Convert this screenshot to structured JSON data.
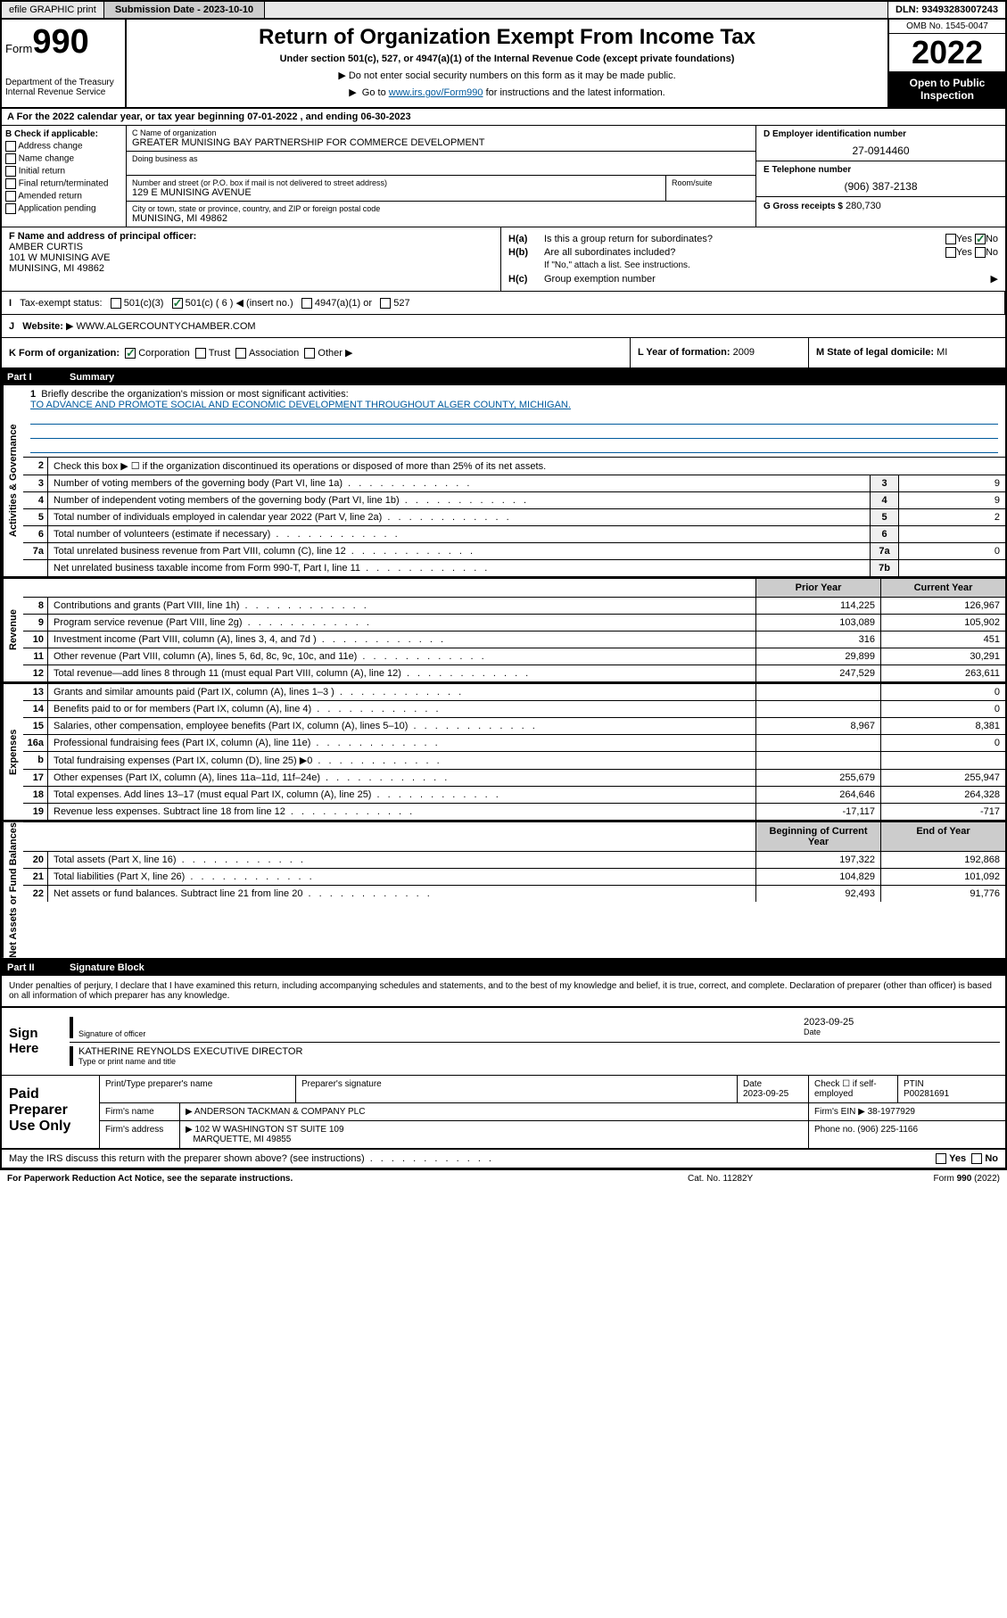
{
  "topbar": {
    "efile": "efile GRAPHIC print",
    "submission_label": "Submission Date - 2023-10-10",
    "dln": "DLN: 93493283007243"
  },
  "header": {
    "form_word": "Form",
    "form_num": "990",
    "dept": "Department of the Treasury\nInternal Revenue Service",
    "title": "Return of Organization Exempt From Income Tax",
    "subtitle": "Under section 501(c), 527, or 4947(a)(1) of the Internal Revenue Code (except private foundations)",
    "instr1": "Do not enter social security numbers on this form as it may be made public.",
    "instr2_a": "Go to ",
    "instr2_link": "www.irs.gov/Form990",
    "instr2_b": " for instructions and the latest information.",
    "omb": "OMB No. 1545-0047",
    "year": "2022",
    "open_pub": "Open to Public Inspection"
  },
  "row_a": "A For the 2022 calendar year, or tax year beginning 07-01-2022   , and ending 06-30-2023",
  "sec_b": {
    "label": "B Check if applicable:",
    "opts": [
      "Address change",
      "Name change",
      "Initial return",
      "Final return/terminated",
      "Amended return",
      "Application pending"
    ]
  },
  "sec_c": {
    "name_lbl": "C Name of organization",
    "name": "GREATER MUNISING BAY PARTNERSHIP FOR COMMERCE DEVELOPMENT",
    "dba_lbl": "Doing business as",
    "addr_lbl": "Number and street (or P.O. box if mail is not delivered to street address)",
    "addr": "129 E MUNISING AVENUE",
    "suite_lbl": "Room/suite",
    "city_lbl": "City or town, state or province, country, and ZIP or foreign postal code",
    "city": "MUNISING, MI  49862"
  },
  "sec_d": {
    "ein_lbl": "D Employer identification number",
    "ein": "27-0914460",
    "tel_lbl": "E Telephone number",
    "tel": "(906) 387-2138",
    "gross_lbl": "G Gross receipts $",
    "gross": "280,730"
  },
  "sec_f": {
    "lbl": "F Name and address of principal officer:",
    "name": "AMBER CURTIS",
    "addr1": "101 W MUNISING AVE",
    "addr2": "MUNISING, MI  49862"
  },
  "sec_h": {
    "ha_lbl": "Is this a group return for subordinates?",
    "hb_lbl": "Are all subordinates included?",
    "hb_note": "If \"No,\" attach a list. See instructions.",
    "hc_lbl": "Group exemption number",
    "yes": "Yes",
    "no": "No"
  },
  "row_i": {
    "lbl": "Tax-exempt status:",
    "opt1": "501(c)(3)",
    "opt2": "501(c) ( 6 )",
    "opt2_note": "(insert no.)",
    "opt3": "4947(a)(1) or",
    "opt4": "527"
  },
  "row_j": {
    "lbl": "Website:",
    "val": "WWW.ALGERCOUNTYCHAMBER.COM"
  },
  "row_k": {
    "lbl": "K Form of organization:",
    "opts": [
      "Corporation",
      "Trust",
      "Association",
      "Other"
    ],
    "l_lbl": "L Year of formation:",
    "l_val": "2009",
    "m_lbl": "M State of legal domicile:",
    "m_val": "MI"
  },
  "part1": {
    "num": "Part I",
    "title": "Summary",
    "mission_lbl": "Briefly describe the organization's mission or most significant activities:",
    "mission": "TO ADVANCE AND PROMOTE SOCIAL AND ECONOMIC DEVELOPMENT THROUGHOUT ALGER COUNTY, MICHIGAN.",
    "line2": "Check this box ▶ ☐  if the organization discontinued its operations or disposed of more than 25% of its net assets.",
    "sides": {
      "gov": "Activities & Governance",
      "rev": "Revenue",
      "exp": "Expenses",
      "net": "Net Assets or Fund Balances"
    },
    "col_prior": "Prior Year",
    "col_curr": "Current Year",
    "col_begin": "Beginning of Current Year",
    "col_end": "End of Year",
    "lines_gov": [
      {
        "n": "3",
        "t": "Number of voting members of the governing body (Part VI, line 1a)",
        "c": "3",
        "v": "9"
      },
      {
        "n": "4",
        "t": "Number of independent voting members of the governing body (Part VI, line 1b)",
        "c": "4",
        "v": "9"
      },
      {
        "n": "5",
        "t": "Total number of individuals employed in calendar year 2022 (Part V, line 2a)",
        "c": "5",
        "v": "2"
      },
      {
        "n": "6",
        "t": "Total number of volunteers (estimate if necessary)",
        "c": "6",
        "v": ""
      },
      {
        "n": "7a",
        "t": "Total unrelated business revenue from Part VIII, column (C), line 12",
        "c": "7a",
        "v": "0"
      },
      {
        "n": "",
        "t": "Net unrelated business taxable income from Form 990-T, Part I, line 11",
        "c": "7b",
        "v": ""
      }
    ],
    "lines_rev": [
      {
        "n": "8",
        "t": "Contributions and grants (Part VIII, line 1h)",
        "p": "114,225",
        "c": "126,967"
      },
      {
        "n": "9",
        "t": "Program service revenue (Part VIII, line 2g)",
        "p": "103,089",
        "c": "105,902"
      },
      {
        "n": "10",
        "t": "Investment income (Part VIII, column (A), lines 3, 4, and 7d )",
        "p": "316",
        "c": "451"
      },
      {
        "n": "11",
        "t": "Other revenue (Part VIII, column (A), lines 5, 6d, 8c, 9c, 10c, and 11e)",
        "p": "29,899",
        "c": "30,291"
      },
      {
        "n": "12",
        "t": "Total revenue—add lines 8 through 11 (must equal Part VIII, column (A), line 12)",
        "p": "247,529",
        "c": "263,611"
      }
    ],
    "lines_exp": [
      {
        "n": "13",
        "t": "Grants and similar amounts paid (Part IX, column (A), lines 1–3 )",
        "p": "",
        "c": "0"
      },
      {
        "n": "14",
        "t": "Benefits paid to or for members (Part IX, column (A), line 4)",
        "p": "",
        "c": "0"
      },
      {
        "n": "15",
        "t": "Salaries, other compensation, employee benefits (Part IX, column (A), lines 5–10)",
        "p": "8,967",
        "c": "8,381"
      },
      {
        "n": "16a",
        "t": "Professional fundraising fees (Part IX, column (A), line 11e)",
        "p": "",
        "c": "0"
      },
      {
        "n": "b",
        "t": "Total fundraising expenses (Part IX, column (D), line 25) ▶0",
        "p": "",
        "c": ""
      },
      {
        "n": "17",
        "t": "Other expenses (Part IX, column (A), lines 11a–11d, 11f–24e)",
        "p": "255,679",
        "c": "255,947"
      },
      {
        "n": "18",
        "t": "Total expenses. Add lines 13–17 (must equal Part IX, column (A), line 25)",
        "p": "264,646",
        "c": "264,328"
      },
      {
        "n": "19",
        "t": "Revenue less expenses. Subtract line 18 from line 12",
        "p": "-17,117",
        "c": "-717"
      }
    ],
    "lines_net": [
      {
        "n": "20",
        "t": "Total assets (Part X, line 16)",
        "p": "197,322",
        "c": "192,868"
      },
      {
        "n": "21",
        "t": "Total liabilities (Part X, line 26)",
        "p": "104,829",
        "c": "101,092"
      },
      {
        "n": "22",
        "t": "Net assets or fund balances. Subtract line 21 from line 20",
        "p": "92,493",
        "c": "91,776"
      }
    ]
  },
  "part2": {
    "num": "Part II",
    "title": "Signature Block",
    "decl": "Under penalties of perjury, I declare that I have examined this return, including accompanying schedules and statements, and to the best of my knowledge and belief, it is true, correct, and complete. Declaration of preparer (other than officer) is based on all information of which preparer has any knowledge.",
    "sign_here": "Sign Here",
    "sig_officer": "Signature of officer",
    "sig_date_lbl": "Date",
    "sig_date": "2023-09-25",
    "officer_name": "KATHERINE REYNOLDS  EXECUTIVE DIRECTOR",
    "officer_sub": "Type or print name and title",
    "paid_lbl": "Paid Preparer Use Only",
    "pp": {
      "h1": "Print/Type preparer's name",
      "h2": "Preparer's signature",
      "h3": "Date",
      "h3v": "2023-09-25",
      "h4": "Check ☐ if self-employed",
      "h5": "PTIN",
      "h5v": "P00281691",
      "firm_lbl": "Firm's name",
      "firm": "ANDERSON TACKMAN & COMPANY PLC",
      "ein_lbl": "Firm's EIN",
      "ein": "38-1977929",
      "addr_lbl": "Firm's address",
      "addr1": "102 W WASHINGTON ST SUITE 109",
      "addr2": "MARQUETTE, MI  49855",
      "phone_lbl": "Phone no.",
      "phone": "(906) 225-1166"
    },
    "may_discuss": "May the IRS discuss this return with the preparer shown above? (see instructions)"
  },
  "footer": {
    "f1": "For Paperwork Reduction Act Notice, see the separate instructions.",
    "f2": "Cat. No. 11282Y",
    "f3": "Form 990 (2022)"
  }
}
